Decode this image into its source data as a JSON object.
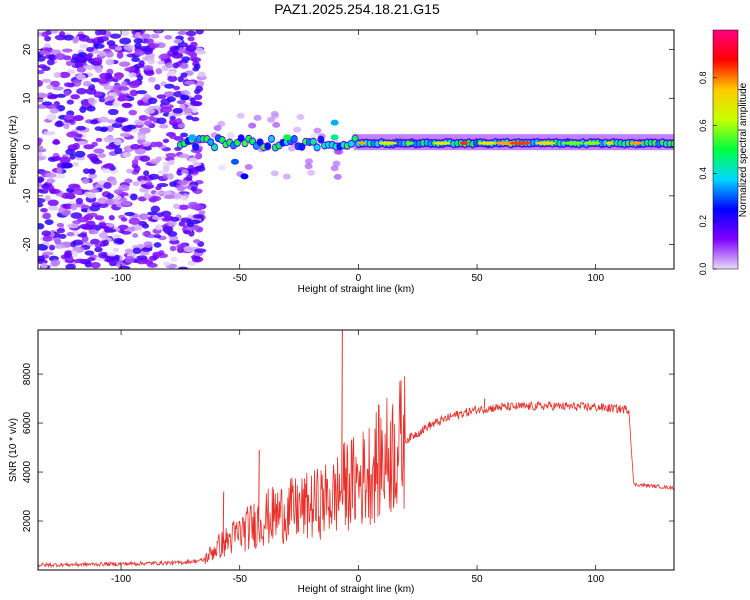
{
  "title": "PAZ1.2025.254.18.21.G15",
  "chart_data": [
    {
      "type": "heatmap",
      "xlabel": "Height of straight line (km)",
      "ylabel": "Frequency (Hz)",
      "xlim": [
        -135,
        133
      ],
      "ylim": [
        -25,
        24
      ],
      "xticks": [
        -100,
        -50,
        0,
        50,
        100
      ],
      "xtick_labels": [
        "-100",
        "-50",
        "0",
        "50",
        "100"
      ],
      "yticks": [
        -20,
        -10,
        0,
        10,
        20
      ],
      "ytick_labels": [
        "-20",
        "-10",
        "0",
        "10",
        "20"
      ],
      "colorbar": {
        "label": "Normalized spectral amplitude",
        "range": [
          0,
          1
        ],
        "ticks": [
          0,
          0.2,
          0.4,
          0.6,
          0.8
        ],
        "tick_labels": [
          "0.0",
          "0.2",
          "0.4",
          "0.6",
          "0.8"
        ],
        "colormap": [
          "#e8dcf8",
          "#8000ff",
          "#0000ff",
          "#00d8ff",
          "#00ff40",
          "#c8ff00",
          "#ffcc00",
          "#ff0000",
          "#ff0080"
        ]
      },
      "features": {
        "noise_region_x": [
          -135,
          -70
        ],
        "noise_amplitude": 0.15,
        "tone_frequency": 0.8,
        "tone_start_x": -75,
        "tone_peak_x": [
          0,
          118
        ],
        "tone_peak_amplitude": 0.85
      }
    },
    {
      "type": "line",
      "xlabel": "Height of straight line (km)",
      "ylabel": "SNR (10 * v/v)",
      "xlim": [
        -135,
        133
      ],
      "ylim": [
        0,
        9800
      ],
      "xticks": [
        -100,
        -50,
        0,
        50,
        100
      ],
      "xtick_labels": [
        "-100",
        "-50",
        "0",
        "50",
        "100"
      ],
      "yticks": [
        2000,
        4000,
        6000,
        8000
      ],
      "ytick_labels": [
        "2000",
        "4000",
        "6000",
        "8000"
      ],
      "color": "#e8302a",
      "series_envelope": {
        "x": [
          -135,
          -100,
          -75,
          -65,
          -60,
          -50,
          -40,
          -30,
          -20,
          -10,
          -7,
          -5,
          0,
          10,
          20,
          30,
          40,
          50,
          60,
          80,
          100,
          114,
          116,
          133
        ],
        "y": [
          200,
          250,
          300,
          400,
          900,
          1500,
          2100,
          2400,
          2600,
          3000,
          3300,
          3500,
          3600,
          4500,
          5300,
          5900,
          6300,
          6550,
          6650,
          6700,
          6650,
          6550,
          3500,
          3350
        ]
      },
      "spikes": [
        {
          "x": -7,
          "y": 9800
        },
        {
          "x": -42,
          "y": 4900
        },
        {
          "x": -57,
          "y": 3200
        },
        {
          "x": 53,
          "y": 7000
        }
      ]
    }
  ]
}
